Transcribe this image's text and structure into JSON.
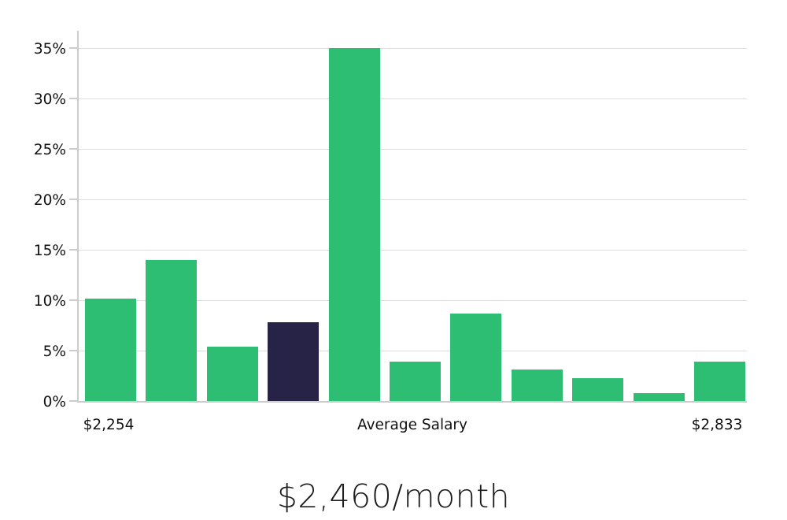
{
  "chart_data": {
    "type": "bar",
    "title": "$2,460/month",
    "values": [
      10.2,
      14.0,
      5.4,
      7.8,
      35.0,
      3.9,
      8.7,
      3.1,
      2.3,
      0.8,
      3.9
    ],
    "highlighted_bar_index": 3,
    "y_ticks": [
      {
        "value": 0,
        "label": "0%"
      },
      {
        "value": 5,
        "label": "5%"
      },
      {
        "value": 10,
        "label": "10%"
      },
      {
        "value": 15,
        "label": "15%"
      },
      {
        "value": 20,
        "label": "20%"
      },
      {
        "value": 25,
        "label": "25%"
      },
      {
        "value": 30,
        "label": "30%"
      },
      {
        "value": 35,
        "label": "35%"
      }
    ],
    "ylim": [
      0,
      36.9
    ],
    "x_axis_labels": {
      "left": "$2,254",
      "center": "Average Salary",
      "right": "$2,833"
    },
    "grid": "horizontal",
    "legend": "none",
    "colors": {
      "bar": "#2dbe73",
      "highlighted_bar": "#272347",
      "gridline": "#dddddd",
      "axis": "#cccccc",
      "text": "#111111",
      "title_text": "#1d1d1d"
    }
  }
}
